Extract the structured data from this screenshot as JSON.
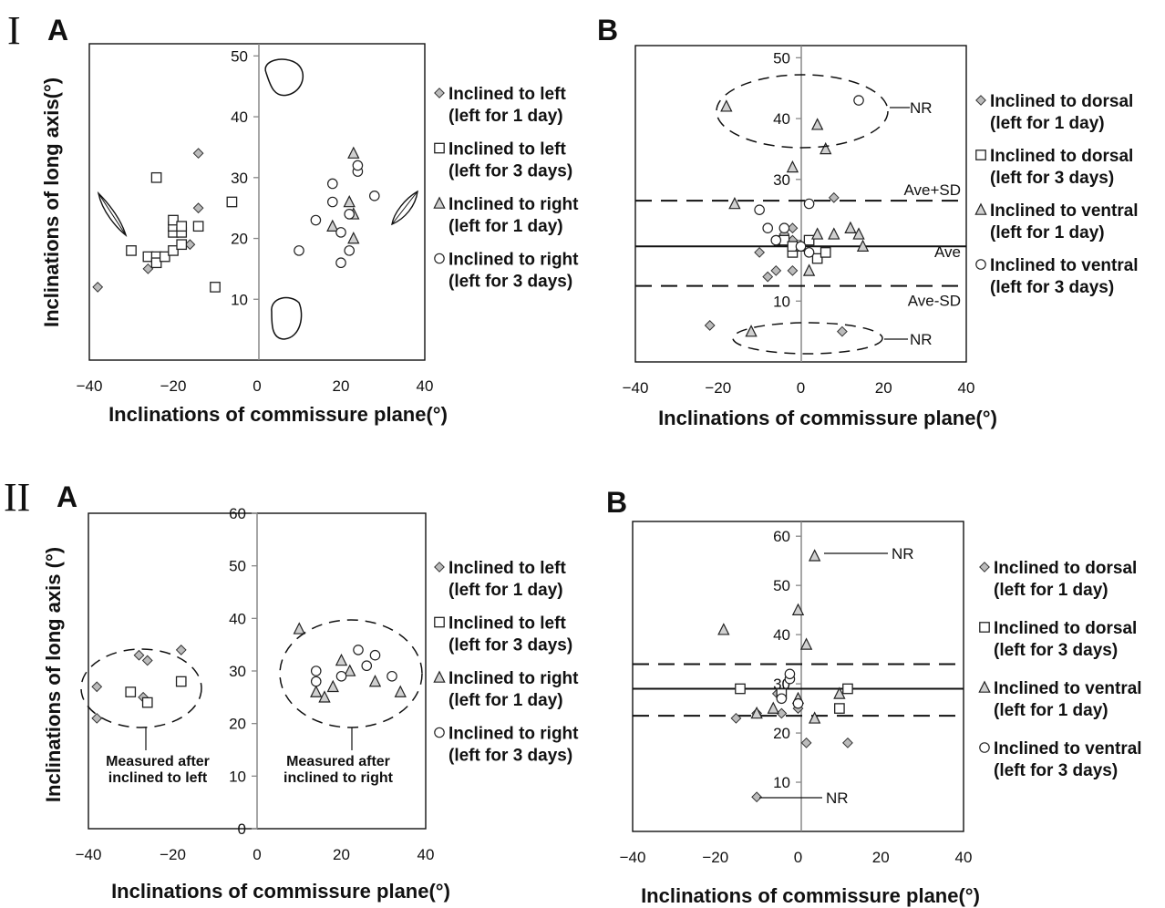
{
  "figure": {
    "section_labels": [
      "I",
      "II"
    ],
    "panel_labels": [
      "A",
      "B",
      "A",
      "B"
    ]
  },
  "chart_data": [
    {
      "type": "scatter",
      "id": "IA",
      "xlabel": "Inclinations of commissure plane(°)",
      "ylabel": "Inclinations of long axis(°)",
      "xlim": [
        -40,
        40
      ],
      "ylim": [
        0,
        52
      ],
      "xticks": [
        -40,
        -20,
        0,
        20,
        40
      ],
      "yticks": [
        10,
        20,
        30,
        40,
        50
      ],
      "series": [
        {
          "name": "Inclined to left",
          "sub": "(left for 1 day)",
          "marker": "diamond",
          "points": [
            [
              -38,
              12
            ],
            [
              -26,
              15
            ],
            [
              -14,
              34
            ],
            [
              -14,
              25
            ],
            [
              -16,
              19
            ]
          ]
        },
        {
          "name": "Inclined to left",
          "sub": "(left for 3 days)",
          "marker": "square",
          "points": [
            [
              -24,
              30
            ],
            [
              -30,
              18
            ],
            [
              -26,
              17
            ],
            [
              -24,
              17
            ],
            [
              -24,
              16
            ],
            [
              -22,
              17
            ],
            [
              -20,
              18
            ],
            [
              -20,
              21
            ],
            [
              -20,
              22
            ],
            [
              -20,
              23
            ],
            [
              -18,
              21
            ],
            [
              -18,
              22
            ],
            [
              -18,
              19
            ],
            [
              -14,
              22
            ],
            [
              -10,
              12
            ],
            [
              -6,
              26
            ]
          ]
        },
        {
          "name": "Inclined to right",
          "sub": "(left for 1 day)",
          "marker": "triangle",
          "points": [
            [
              23,
              34
            ],
            [
              22,
              26
            ],
            [
              23,
              24
            ],
            [
              18,
              22
            ],
            [
              23,
              20
            ]
          ]
        },
        {
          "name": "Inclined to right",
          "sub": "(left for 3 days)",
          "marker": "circle",
          "points": [
            [
              10,
              18
            ],
            [
              14,
              23
            ],
            [
              18,
              29
            ],
            [
              18,
              26
            ],
            [
              20,
              21
            ],
            [
              20,
              16
            ],
            [
              22,
              18
            ],
            [
              22,
              24
            ],
            [
              24,
              31
            ],
            [
              24,
              32
            ],
            [
              28,
              27
            ]
          ]
        }
      ]
    },
    {
      "type": "scatter",
      "id": "IB",
      "xlabel": "Inclinations of commissure plane(°)",
      "xlim": [
        -40,
        40
      ],
      "ylim": [
        0,
        52
      ],
      "xticks": [
        -40,
        -20,
        0,
        20,
        40
      ],
      "yticks": [
        10,
        20,
        30,
        40,
        50
      ],
      "hlines": [
        {
          "y": 26.5,
          "label": "Ave+SD",
          "style": "dashed"
        },
        {
          "y": 19,
          "label": "Ave",
          "style": "solid"
        },
        {
          "y": 12.5,
          "label": "Ave-SD",
          "style": "dashed"
        }
      ],
      "nr_label": "NR",
      "series": [
        {
          "name": "Inclined to dorsal",
          "sub": "(left for 1 day)",
          "marker": "diamond",
          "points": [
            [
              -22,
              6
            ],
            [
              -8,
              14
            ],
            [
              -6,
              15
            ],
            [
              -2,
              15
            ],
            [
              -2,
              20
            ],
            [
              -4,
              21
            ],
            [
              -6,
              20
            ],
            [
              -10,
              18
            ],
            [
              -2,
              22
            ],
            [
              8,
              27
            ],
            [
              10,
              5
            ]
          ]
        },
        {
          "name": "Inclined to  dorsal",
          "sub": "(left for 3 days)",
          "marker": "square",
          "points": [
            [
              -4,
              20
            ],
            [
              -2,
              18
            ],
            [
              2,
              20
            ],
            [
              4,
              17
            ],
            [
              6,
              18
            ],
            [
              -2,
              19
            ]
          ]
        },
        {
          "name": "Inclined to ventral",
          "sub": "(left for 1 day)",
          "marker": "triangle",
          "points": [
            [
              -18,
              42
            ],
            [
              4,
              39
            ],
            [
              6,
              35
            ],
            [
              -2,
              32
            ],
            [
              -16,
              26
            ],
            [
              4,
              21
            ],
            [
              8,
              21
            ],
            [
              12,
              22
            ],
            [
              14,
              21
            ],
            [
              15,
              19
            ],
            [
              2,
              15
            ],
            [
              0,
              19
            ],
            [
              -12,
              5
            ]
          ]
        },
        {
          "name": "Inclined to ventral",
          "sub": "(left for 3 days)",
          "marker": "circle",
          "points": [
            [
              -10,
              25
            ],
            [
              -8,
              22
            ],
            [
              -4,
              22
            ],
            [
              -6,
              20
            ],
            [
              0,
              19
            ],
            [
              2,
              26
            ],
            [
              2,
              18
            ],
            [
              14,
              43
            ]
          ]
        }
      ]
    },
    {
      "type": "scatter",
      "id": "IIA",
      "xlabel": "Inclinations of commissure plane(°)",
      "ylabel": "Inclinations of long axis (°)",
      "xlim": [
        -40,
        40
      ],
      "ylim": [
        0,
        60
      ],
      "xticks": [
        -40,
        -20,
        0,
        20,
        40
      ],
      "yticks": [
        0,
        10,
        20,
        30,
        40,
        50,
        60
      ],
      "annotations": [
        "Measured after\ninclined to left",
        "Measured after\ninclined to right"
      ],
      "series": [
        {
          "name": "Inclined to left",
          "sub": "(left for 1 day)",
          "marker": "diamond",
          "points": [
            [
              -38,
              27
            ],
            [
              -38,
              21
            ],
            [
              -28,
              33
            ],
            [
              -26,
              32
            ],
            [
              -27,
              25
            ],
            [
              -18,
              34
            ],
            [
              -18,
              28
            ]
          ]
        },
        {
          "name": "Inclined to left",
          "sub": "(left for 3 days)",
          "marker": "square",
          "points": [
            [
              -30,
              26
            ],
            [
              -26,
              24
            ],
            [
              -18,
              28
            ]
          ]
        },
        {
          "name": "Inclined to right",
          "sub": "(left for 1 day)",
          "marker": "triangle",
          "points": [
            [
              10,
              38
            ],
            [
              14,
              26
            ],
            [
              16,
              25
            ],
            [
              18,
              27
            ],
            [
              20,
              32
            ],
            [
              22,
              30
            ],
            [
              28,
              28
            ],
            [
              34,
              26
            ]
          ]
        },
        {
          "name": "Inclined to right",
          "sub": "(left for 3 days)",
          "marker": "circle",
          "points": [
            [
              14,
              30
            ],
            [
              14,
              28
            ],
            [
              20,
              29
            ],
            [
              24,
              34
            ],
            [
              26,
              31
            ],
            [
              28,
              33
            ],
            [
              32,
              29
            ]
          ]
        }
      ]
    },
    {
      "type": "scatter",
      "id": "IIB",
      "xlabel": "Inclinations of commissure plane(°)",
      "xlim": [
        -40,
        40
      ],
      "ylim": [
        0,
        63
      ],
      "xticks": [
        -40,
        -20,
        0,
        20,
        40
      ],
      "yticks": [
        10,
        20,
        30,
        40,
        50,
        60
      ],
      "hlines": [
        {
          "y": 34,
          "style": "dashed"
        },
        {
          "y": 29,
          "style": "solid"
        },
        {
          "y": 23.5,
          "style": "dashed"
        }
      ],
      "nr_label": "NR",
      "series": [
        {
          "name": "Inclined to dorsal",
          "sub": "(left for 1 day)",
          "marker": "diamond",
          "points": [
            [
              -10,
              7
            ],
            [
              -15,
              23
            ],
            [
              -10,
              24
            ],
            [
              -5,
              28
            ],
            [
              -4,
              24
            ],
            [
              0,
              25
            ],
            [
              2,
              18
            ],
            [
              12,
              18
            ]
          ]
        },
        {
          "name": "Inclined to dorsal",
          "sub": "(left for 3 days)",
          "marker": "square",
          "points": [
            [
              -14,
              29
            ],
            [
              -4,
              28
            ],
            [
              10,
              25
            ],
            [
              12,
              29
            ]
          ]
        },
        {
          "name": "Inclined to ventral",
          "sub": "(left for 1 day)",
          "marker": "triangle",
          "points": [
            [
              -18,
              41
            ],
            [
              4,
              56
            ],
            [
              0,
              45
            ],
            [
              2,
              38
            ],
            [
              -10,
              24
            ],
            [
              -6,
              25
            ],
            [
              0,
              27
            ],
            [
              4,
              23
            ],
            [
              10,
              28
            ]
          ]
        },
        {
          "name": "Inclined to ventral",
          "sub": "(left for 3 days)",
          "marker": "circle",
          "points": [
            [
              -2,
              31
            ],
            [
              -2,
              32
            ],
            [
              -4,
              27
            ],
            [
              0,
              26
            ]
          ]
        }
      ]
    }
  ]
}
